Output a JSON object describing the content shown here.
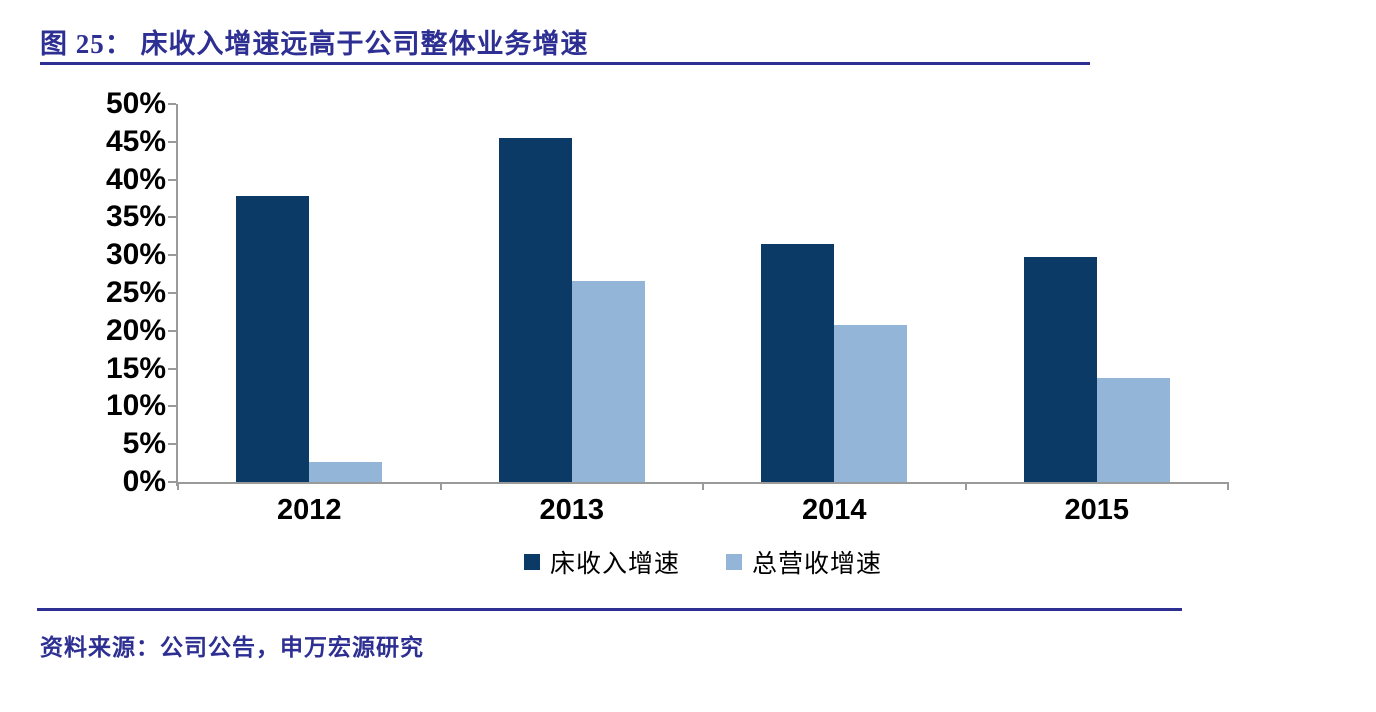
{
  "header": {
    "title": "图 25：  床收入增速远高于公司整体业务增速"
  },
  "footer": {
    "source": "资料来源：公司公告，申万宏源研究"
  },
  "colors": {
    "accent": "#2d2f92",
    "axis": "#9a9a9a",
    "bed_revenue_series": "#0b3a67",
    "total_revenue_series": "#93b5d8"
  },
  "chart_data": {
    "type": "bar",
    "title": "图 25：床收入增速远高于公司整体业务增速",
    "categories": [
      "2012",
      "2013",
      "2014",
      "2015"
    ],
    "series": [
      {
        "name": "床收入增速",
        "color": "#0b3a67",
        "values": [
          37.8,
          45.5,
          31.5,
          29.7
        ]
      },
      {
        "name": "总营收增速",
        "color": "#93b5d8",
        "values": [
          2.7,
          26.6,
          20.8,
          13.8
        ]
      }
    ],
    "xlabel": "",
    "ylabel": "",
    "ylim": [
      0,
      50
    ],
    "y_tick_step": 5,
    "y_tick_suffix": "%",
    "grid": false,
    "legend_position": "bottom"
  }
}
